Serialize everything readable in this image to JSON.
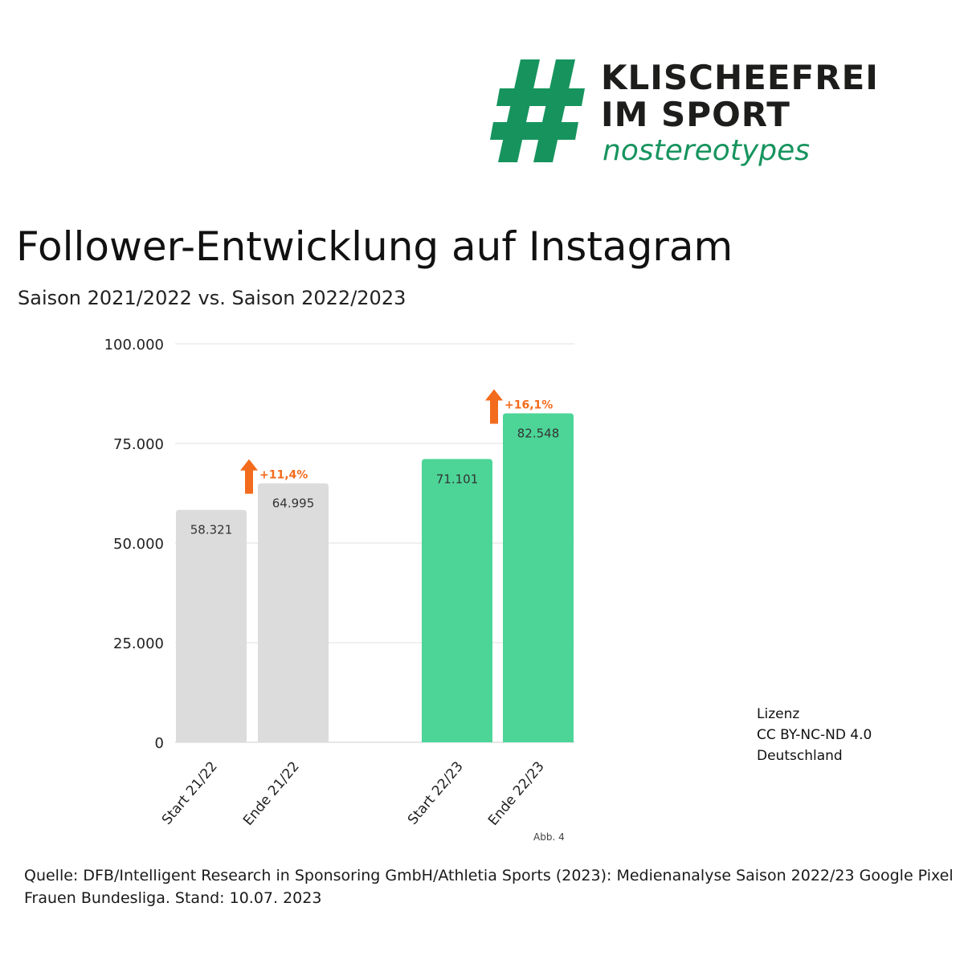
{
  "logo": {
    "line1": "KLISCHEEFREI",
    "line2": "IM SPORT",
    "line3": "nostereotypes",
    "color_dark": "#1d1d1b",
    "color_green": "#17945e"
  },
  "chart_data": {
    "type": "bar",
    "title": "Follower-Entwicklung auf Instagram",
    "subtitle": "Saison 2021/2022 vs. Saison 2022/2023",
    "categories": [
      "Start 21/22",
      "Ende 21/22",
      "Start 22/23",
      "Ende 22/23"
    ],
    "values": [
      58321,
      64995,
      71101,
      82548
    ],
    "value_labels": [
      "58.321",
      "64.995",
      "71.101",
      "82.548"
    ],
    "bar_colors": [
      "#dcdcdc",
      "#dcdcdc",
      "#4cd597",
      "#4cd597"
    ],
    "ylim": [
      0,
      100000
    ],
    "yticks": [
      0,
      25000,
      50000,
      75000,
      100000
    ],
    "ytick_labels": [
      "0",
      "25.000",
      "50.000",
      "75.000",
      "100.000"
    ],
    "grid": true,
    "annotations": [
      {
        "text": "+11,4%",
        "bar_index": 1,
        "color": "#f36b1c"
      },
      {
        "text": "+16,1%",
        "bar_index": 3,
        "color": "#f36b1c"
      }
    ]
  },
  "license": {
    "label": "Lizenz",
    "name": "CC BY-NC-ND 4.0",
    "country": "Deutschland"
  },
  "figure_note": "Abb. 4",
  "source_text": "Quelle: DFB/Intelligent Research in Sponsoring GmbH/Athletia Sports (2023): Medienanalyse Saison 2022/23 Google Pixel Frauen Bundesliga. Stand: 10.07. 2023"
}
